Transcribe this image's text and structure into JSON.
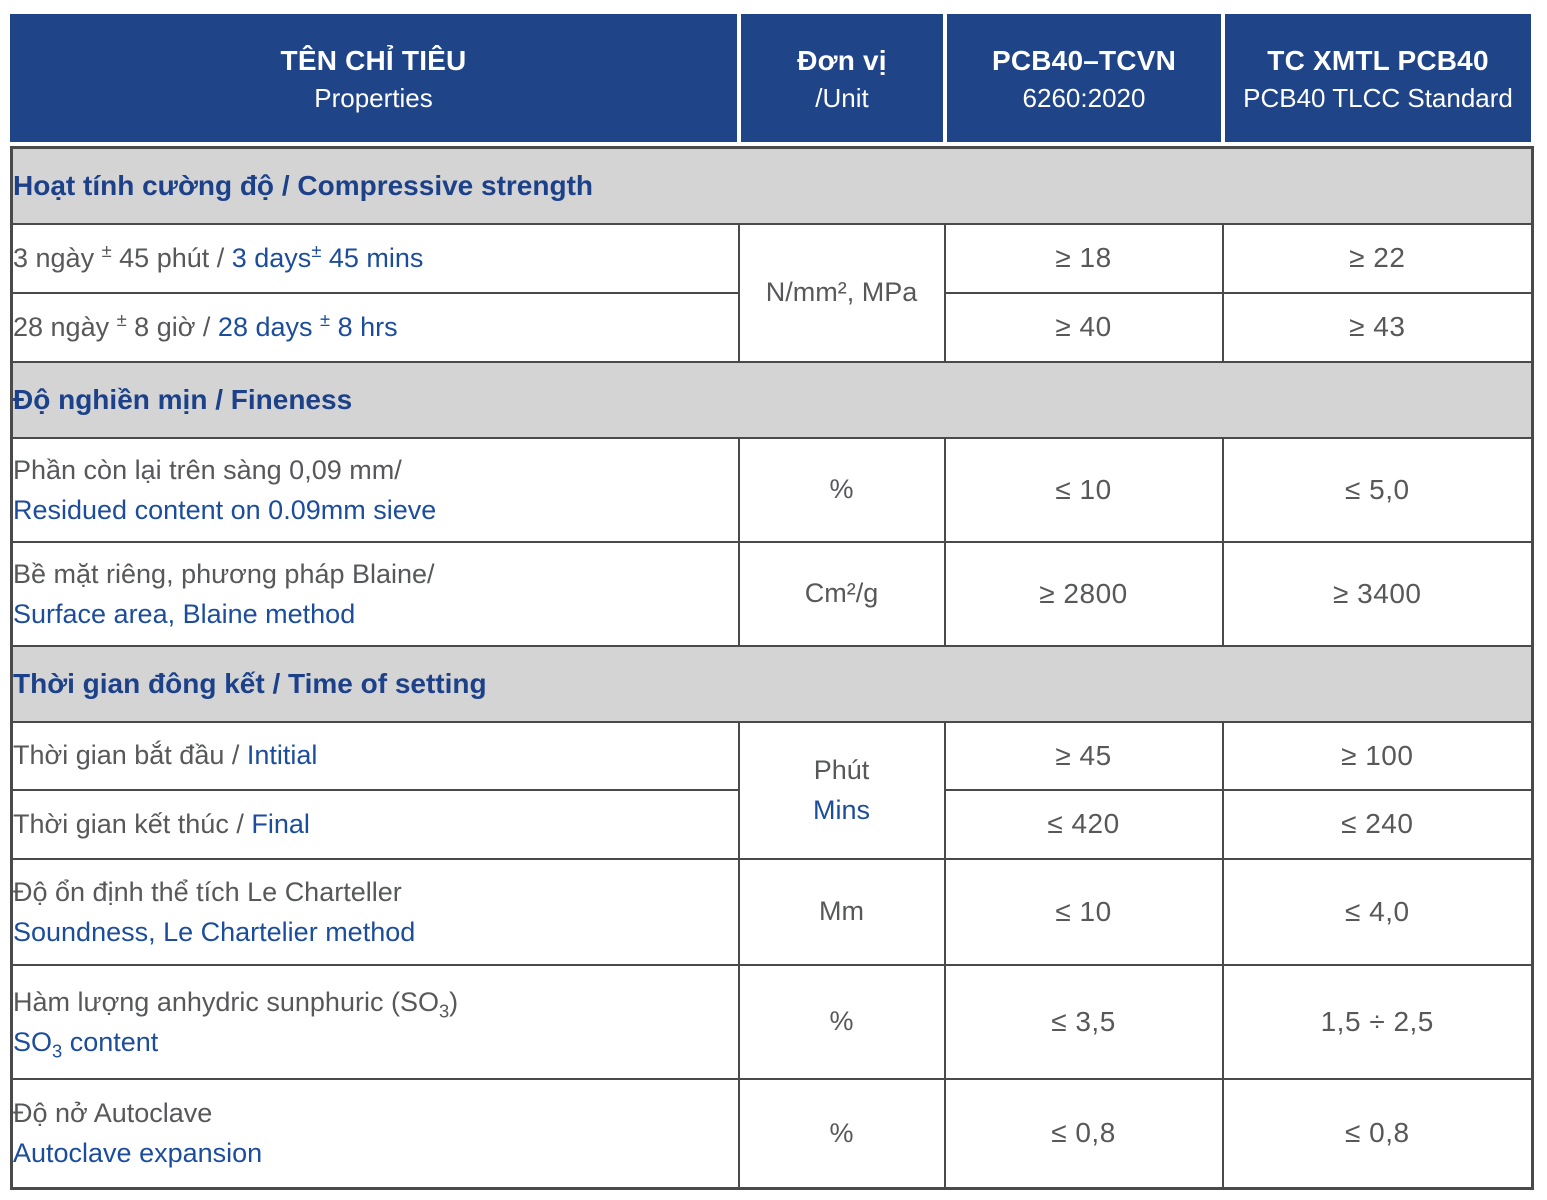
{
  "colors": {
    "header_bg": "#1F4488",
    "header_text": "#FFFFFF",
    "section_bg": "#D4D4D5",
    "section_text": "#1C4189",
    "border": "#4A4A4A",
    "vn_text": "#57585A",
    "en_text": "#1C4D9D"
  },
  "header": {
    "properties": {
      "line1": "TÊN CHỈ TIÊU",
      "line2": "Properties"
    },
    "unit": {
      "line1": "Đơn vị",
      "line2": "/Unit"
    },
    "tcvn": {
      "line1": "PCB40–TCVN",
      "line2": "6260:2020"
    },
    "tlcc": {
      "line1": "TC XMTL PCB40",
      "line2": "PCB40 TLCC Standard"
    }
  },
  "sections": {
    "strength": "Hoạt tính cường độ /  Compressive strength",
    "fineness": "Độ nghiền mịn / Fineness",
    "setting": "Thời gian đông kết / Time of setting"
  },
  "units": {
    "strength": "N/mm², MPa",
    "setting": {
      "vn": "Phút",
      "en": "Mins"
    },
    "sieve": "%",
    "blaine": "Cm²/g",
    "soundness": "Mm",
    "so3": "%",
    "autoclave": "%"
  },
  "rows": {
    "days3": {
      "vn": "3 ngày ^±^ 45 phút / ",
      "en": "3 days^±^ 45 mins",
      "tcvn": "≥ 18",
      "tlcc": "≥ 22"
    },
    "days28": {
      "vn": "28 ngày ^±^ 8 giờ / ",
      "en": "28 days ^±^ 8 hrs",
      "tcvn": "≥ 40",
      "tlcc": "≥ 43"
    },
    "sieve": {
      "vn": "Phần còn lại trên sàng 0,09 mm/",
      "en": "Residued content on 0.09mm sieve",
      "tcvn": "≤ 10",
      "tlcc": "≤ 5,0"
    },
    "blaine": {
      "vn": "Bề mặt riêng, phương pháp Blaine/",
      "en": "Surface area, Blaine method",
      "tcvn": "≥ 2800",
      "tlcc": "≥ 3400"
    },
    "initial": {
      "vn": "Thời gian bắt đầu / ",
      "en": "Intitial",
      "tcvn": "≥ 45",
      "tlcc": "≥ 100"
    },
    "final": {
      "vn": "Thời gian kết thúc / ",
      "en": "Final",
      "tcvn": "≤ 420",
      "tlcc": "≤ 240"
    },
    "soundness": {
      "vn": "Độ ổn định thể tích Le Charteller",
      "en": "Soundness, Le Chartelier method",
      "tcvn": "≤ 10",
      "tlcc": "≤ 4,0"
    },
    "so3": {
      "vn": "Hàm lượng anhydric sunphuric (SO~3~)",
      "en": "SO~3~ content",
      "tcvn": "≤ 3,5",
      "tlcc": "1,5 ÷ 2,5"
    },
    "autoclave": {
      "vn": "Độ nở Autoclave",
      "en": "Autoclave expansion",
      "tcvn": "≤ 0,8",
      "tlcc": "≤ 0,8"
    }
  }
}
